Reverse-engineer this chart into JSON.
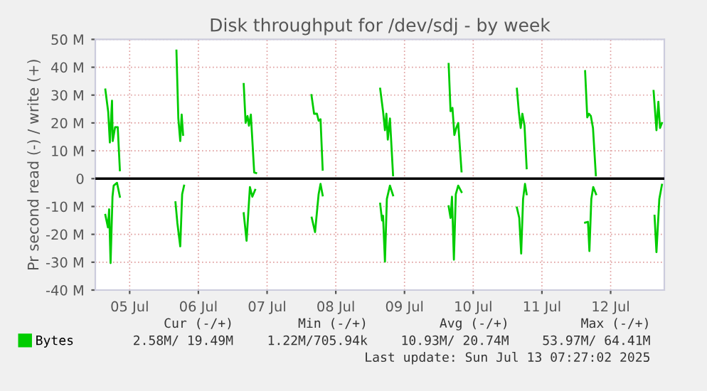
{
  "chart_data": {
    "type": "line",
    "title": "Disk throughput for /dev/sdj - by week",
    "ylabel": "Pr second read (-) / write (+)",
    "xlim": [
      "2025-07-05T00:00",
      "2025-07-13T06:45"
    ],
    "xticks": [
      {
        "value": "2025-07-05T12:00",
        "label": "05 Jul"
      },
      {
        "value": "2025-07-06T12:00",
        "label": "06 Jul"
      },
      {
        "value": "2025-07-07T12:00",
        "label": "07 Jul"
      },
      {
        "value": "2025-07-08T12:00",
        "label": "08 Jul"
      },
      {
        "value": "2025-07-09T12:00",
        "label": "09 Jul"
      },
      {
        "value": "2025-07-10T12:00",
        "label": "10 Jul"
      },
      {
        "value": "2025-07-11T12:00",
        "label": "11 Jul"
      },
      {
        "value": "2025-07-12T12:00",
        "label": "12 Jul"
      }
    ],
    "ylim": [
      -40,
      50
    ],
    "yticks": [
      {
        "value": -40,
        "label": "-40 M"
      },
      {
        "value": -30,
        "label": "-30 M"
      },
      {
        "value": -20,
        "label": "-20 M"
      },
      {
        "value": -10,
        "label": "-10 M"
      },
      0,
      {
        "value": 10,
        "label": "10 M"
      },
      {
        "value": 20,
        "label": "20 M"
      },
      {
        "value": 30,
        "label": "30 M"
      },
      {
        "value": 40,
        "label": "40 M"
      },
      {
        "value": 50,
        "label": "50 M"
      }
    ],
    "grid": true,
    "legend": "bottom left",
    "line_style": "solid",
    "marker": "none",
    "ref_lines": [
      {
        "axis": "y",
        "value": 0,
        "color": "#000000"
      }
    ],
    "series": [
      {
        "name": "Bytes",
        "color": "#00cc00",
        "x": [
          "2025-07-05T03:30",
          "2025-07-05T04:30",
          "2025-07-05T05:05",
          "2025-07-05T05:50",
          "2025-07-05T06:05",
          "2025-07-05T06:55",
          "2025-07-05T07:50",
          "2025-07-05T08:35",
          "2025-07-05T18:00",
          "2025-07-06T04:20",
          "2025-07-06T05:00",
          "2025-07-06T05:40",
          "2025-07-06T06:10",
          "2025-07-06T06:40",
          "2025-07-06T18:00",
          "2025-07-07T03:50",
          "2025-07-07T04:30",
          "2025-07-07T05:10",
          "2025-07-07T05:40",
          "2025-07-07T06:20",
          "2025-07-07T07:30",
          "2025-07-07T08:10",
          "2025-07-07T18:00",
          "2025-07-08T03:30",
          "2025-07-08T04:25",
          "2025-07-08T05:25",
          "2025-07-08T06:00",
          "2025-07-08T06:40",
          "2025-07-08T07:25",
          "2025-07-08T18:00",
          "2025-07-09T03:30",
          "2025-07-09T04:30",
          "2025-07-09T05:10",
          "2025-07-09T05:40",
          "2025-07-09T06:10",
          "2025-07-09T06:55",
          "2025-07-09T08:00",
          "2025-07-09T18:00",
          "2025-07-10T03:25",
          "2025-07-10T04:05",
          "2025-07-10T04:45",
          "2025-07-10T05:25",
          "2025-07-10T06:05",
          "2025-07-10T06:45",
          "2025-07-10T07:55",
          "2025-07-10T18:00",
          "2025-07-11T03:15",
          "2025-07-11T03:55",
          "2025-07-11T04:35",
          "2025-07-11T05:10",
          "2025-07-11T05:55",
          "2025-07-11T06:40",
          "2025-07-11T18:00",
          "2025-07-12T03:05",
          "2025-07-12T03:50",
          "2025-07-12T04:25",
          "2025-07-12T05:05",
          "2025-07-12T05:50",
          "2025-07-12T06:50",
          "2025-07-12T18:00",
          "2025-07-13T03:00",
          "2025-07-13T04:00",
          "2025-07-13T04:40",
          "2025-07-13T05:15",
          "2025-07-13T05:55"
        ],
        "values": [
          32,
          24,
          13,
          28,
          13.5,
          18.5,
          18.5,
          3,
          null,
          46,
          21.6,
          13.5,
          23,
          15.7,
          null,
          34,
          20,
          22.5,
          19,
          23,
          2.2,
          2,
          null,
          30,
          23.3,
          23.3,
          20.8,
          21.3,
          3.2,
          null,
          32.3,
          24.2,
          17.4,
          23.3,
          14,
          21.6,
          1.2,
          null,
          41.2,
          24.2,
          25.4,
          15.7,
          18.2,
          20,
          2.6,
          null,
          32.3,
          24.2,
          18.2,
          23.3,
          19,
          3.7,
          null,
          38.6,
          22,
          23.3,
          22.5,
          18.2,
          1.2,
          null,
          31.5,
          17.4,
          27.6,
          18.2,
          20
        ]
      },
      {
        "color": "#00cc00",
        "x": [
          "2025-07-05T03:30",
          "2025-07-05T04:25",
          "2025-07-05T04:50",
          "2025-07-05T05:20",
          "2025-07-05T06:00",
          "2025-07-05T06:25",
          "2025-07-05T07:35",
          "2025-07-05T08:35",
          "2025-07-05T18:00",
          "2025-07-06T04:00",
          "2025-07-06T04:40",
          "2025-07-06T05:40",
          "2025-07-06T06:20",
          "2025-07-06T07:00",
          "2025-07-06T18:00",
          "2025-07-07T03:50",
          "2025-07-07T04:50",
          "2025-07-07T06:00",
          "2025-07-07T06:50",
          "2025-07-07T07:50",
          "2025-07-07T18:00",
          "2025-07-08T03:35",
          "2025-07-08T04:45",
          "2025-07-08T06:00",
          "2025-07-08T06:40",
          "2025-07-08T07:25",
          "2025-07-08T18:00",
          "2025-07-09T03:30",
          "2025-07-09T04:10",
          "2025-07-09T04:30",
          "2025-07-09T05:10",
          "2025-07-09T05:50",
          "2025-07-09T06:55",
          "2025-07-09T08:00",
          "2025-07-09T18:00",
          "2025-07-10T03:25",
          "2025-07-10T04:05",
          "2025-07-10T04:35",
          "2025-07-10T05:15",
          "2025-07-10T05:55",
          "2025-07-10T06:45",
          "2025-07-10T07:55",
          "2025-07-10T18:00",
          "2025-07-11T03:15",
          "2025-07-11T04:05",
          "2025-07-11T04:45",
          "2025-07-11T05:25",
          "2025-07-11T06:05",
          "2025-07-11T06:40",
          "2025-07-11T18:00",
          "2025-07-12T03:05",
          "2025-07-12T04:05",
          "2025-07-12T04:35",
          "2025-07-12T05:15",
          "2025-07-12T05:55",
          "2025-07-12T06:55",
          "2025-07-12T18:00",
          "2025-07-13T03:20",
          "2025-07-13T04:00",
          "2025-07-13T05:00",
          "2025-07-13T05:55"
        ],
        "values": [
          -13,
          -17.5,
          -11,
          -30.3,
          -6.5,
          -2.5,
          -1.5,
          -6.5,
          null,
          -8.5,
          -16,
          -24.3,
          -5.6,
          -2.5,
          null,
          -12.4,
          -22.3,
          -3,
          -6.5,
          -4,
          null,
          -14,
          -19.2,
          -5.6,
          -1.9,
          -6,
          null,
          -9,
          -15,
          -13.3,
          -29.8,
          -7.3,
          -2.5,
          -6,
          null,
          -9.9,
          -14.1,
          -6.5,
          -29.1,
          -5.6,
          -2.5,
          -4.8,
          null,
          -10.4,
          -14.1,
          -26.9,
          -7.3,
          -1.9,
          -5.6,
          null,
          -15.8,
          -15.5,
          -26,
          -7.3,
          -3,
          -5.6,
          null,
          -13.3,
          -26.4,
          -7.3,
          -2.2
        ]
      }
    ],
    "annotations": [
      "Cur (-/+)",
      "Min (-/+)",
      "Avg (-/+)",
      "Max (-/+)",
      "2.58M/ 19.49M",
      "1.22M/705.94k",
      "10.93M/ 20.74M",
      "53.97M/ 64.41M",
      "Last update: Sun Jul 13 07:27:02 2025"
    ]
  }
}
